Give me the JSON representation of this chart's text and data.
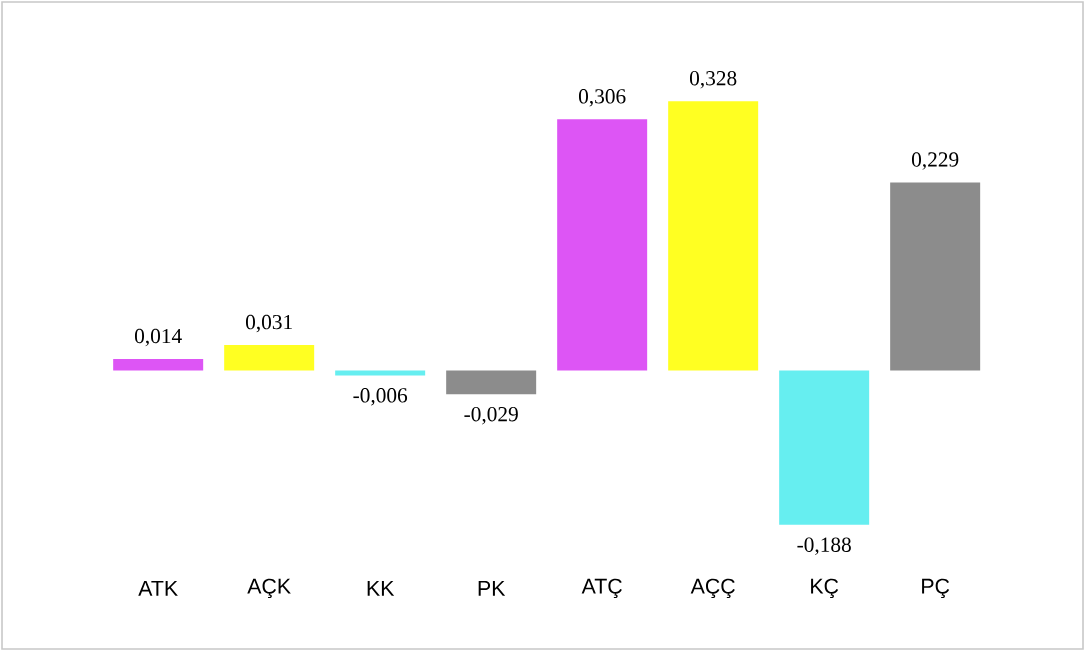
{
  "chart_data": {
    "type": "bar",
    "categories": [
      "ATK",
      "AÇK",
      "KK",
      "PK",
      "ATÇ",
      "AÇÇ",
      "KÇ",
      "PÇ"
    ],
    "values": [
      0.014,
      0.031,
      -0.006,
      -0.029,
      0.306,
      0.328,
      -0.188,
      0.229
    ],
    "value_labels": [
      "0,014",
      "0,031",
      "-0,006",
      "-0,029",
      "0,306",
      "0,328",
      "-0,188",
      "0,229"
    ],
    "colors": [
      "#dd55f5",
      "#ffff22",
      "#66eef0",
      "#8c8c8c",
      "#dd55f5",
      "#ffff22",
      "#66eef0",
      "#8c8c8c"
    ]
  }
}
